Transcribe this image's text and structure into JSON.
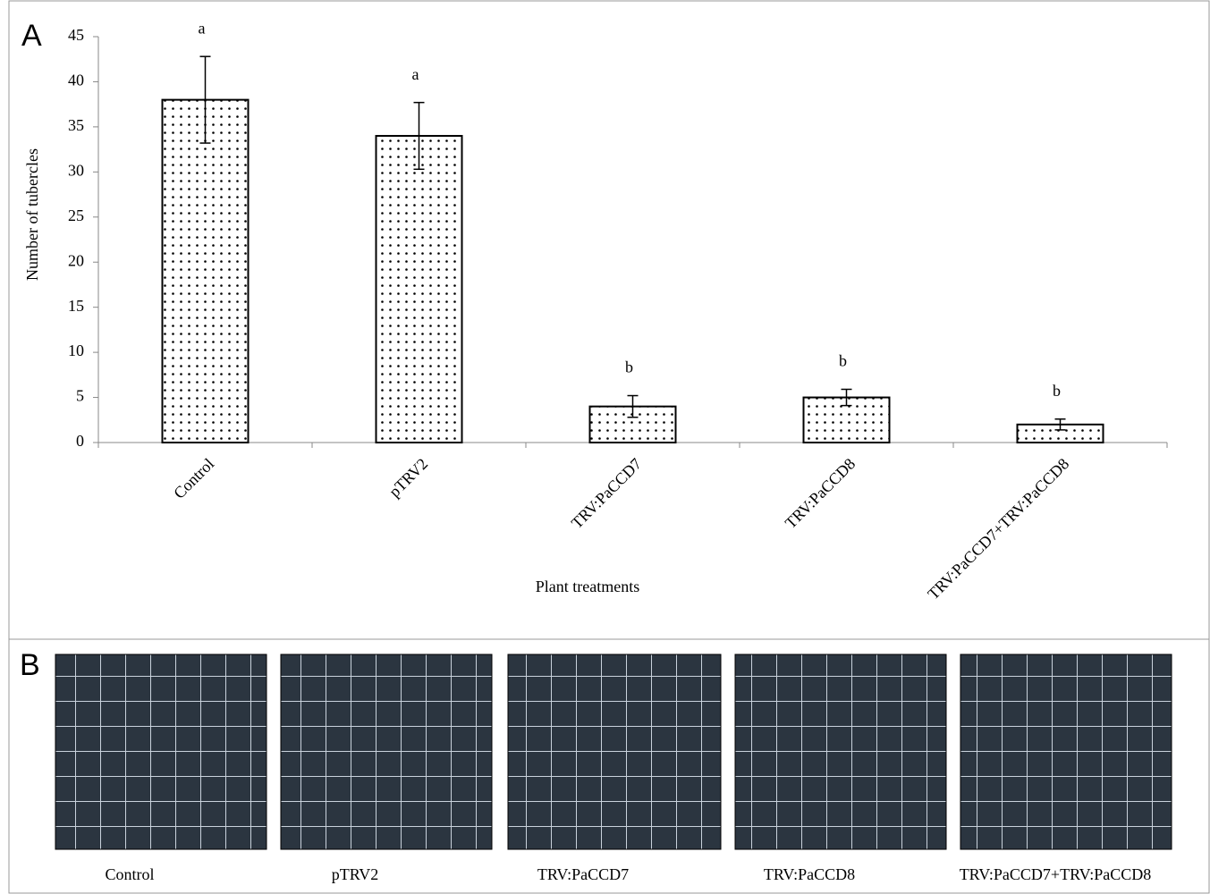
{
  "chart_data": {
    "type": "bar",
    "y_label": "Number of tubercles",
    "x_label": "Plant treatments",
    "categories": [
      "Control",
      "pTRV2",
      "TRV:PaCCD7",
      "TRV:PaCCD8",
      "TRV:PaCCD7+TRV:PaCCD8"
    ],
    "values": [
      38,
      34,
      4,
      5,
      2
    ],
    "errors": [
      4.8,
      3.7,
      1.2,
      0.9,
      0.6
    ],
    "significance_letters": [
      "a",
      "a",
      "b",
      "b",
      "b"
    ],
    "color": "#ffffff",
    "ylim": [
      0,
      45
    ],
    "yticks": [
      0,
      5,
      10,
      15,
      20,
      25,
      30,
      35,
      40,
      45
    ]
  },
  "panels": {
    "a_label": "A",
    "b_label": "B",
    "photo_captions": [
      "Control",
      "pTRV2",
      "TRV:PaCCD7",
      "TRV:PaCCD8",
      "TRV:PaCCD7+TRV:PaCCD8"
    ]
  }
}
